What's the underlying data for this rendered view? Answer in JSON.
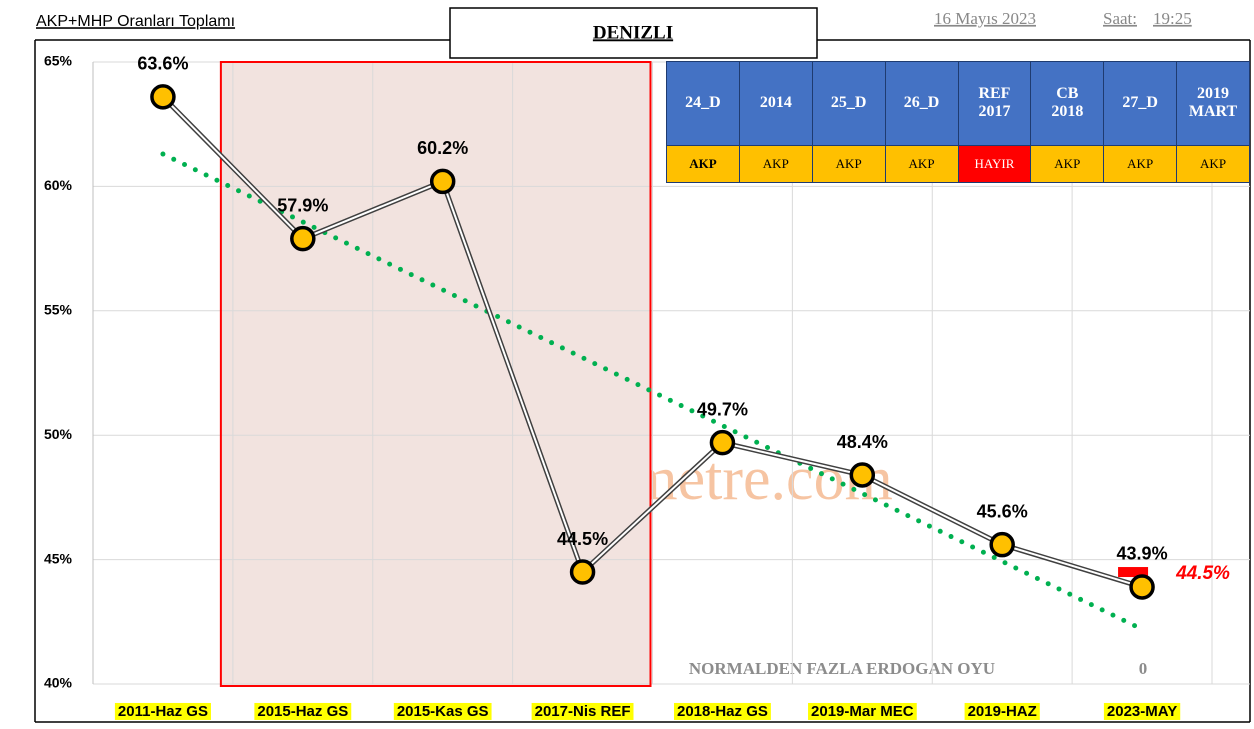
{
  "chart_data": {
    "type": "line",
    "title": "DENIZLI",
    "subtitle": "AKP+MHP Oranları Toplamı",
    "date": "16 Mayıs 2023",
    "time_label": "Saat:",
    "time": "19:25",
    "watermark": "www.polimetre.com",
    "categories": [
      "2011-Haz GS",
      "2015-Haz GS",
      "2015-Kas GS",
      "2017-Nis REF",
      "2018-Haz GS",
      "2019-Mar MEC",
      "2019-HAZ",
      "2023-MAY"
    ],
    "series": [
      {
        "name": "AKP+MHP",
        "color": "#ffc000",
        "values": [
          63.6,
          57.9,
          60.2,
          44.5,
          49.7,
          48.4,
          45.6,
          43.9
        ],
        "value_labels": [
          "63.6%",
          "57.9%",
          "60.2%",
          "44.5%",
          "49.7%",
          "48.4%",
          "45.6%",
          "43.9%"
        ]
      }
    ],
    "trendline": {
      "color": "#00b050",
      "start": 61.3,
      "end": 42.2
    },
    "target": {
      "value": 44.5,
      "value_label": "44.5%",
      "color": "#ff0000"
    },
    "highlight": {
      "from": 1,
      "to": 3,
      "color": "#ff0000"
    },
    "note": "NORMALDEN FAZLA ERDOGAN OYU",
    "note_value": "0",
    "ylim": [
      40,
      65
    ],
    "yticks": [
      {
        "value": 40,
        "label": "40%"
      },
      {
        "value": 45,
        "label": "45%"
      },
      {
        "value": 50,
        "label": "50%"
      },
      {
        "value": 55,
        "label": "55%"
      },
      {
        "value": 60,
        "label": "60%"
      },
      {
        "value": 65,
        "label": "65%"
      }
    ],
    "grid": true,
    "table": {
      "header": [
        "24_D",
        "2014",
        "25_D",
        "26_D",
        "REF 2017",
        "CB 2018",
        "27_D",
        "2019 MART"
      ],
      "row": [
        "AKP",
        "AKP",
        "AKP",
        "AKP",
        "HAYIR",
        "AKP",
        "AKP",
        "AKP"
      ]
    }
  }
}
